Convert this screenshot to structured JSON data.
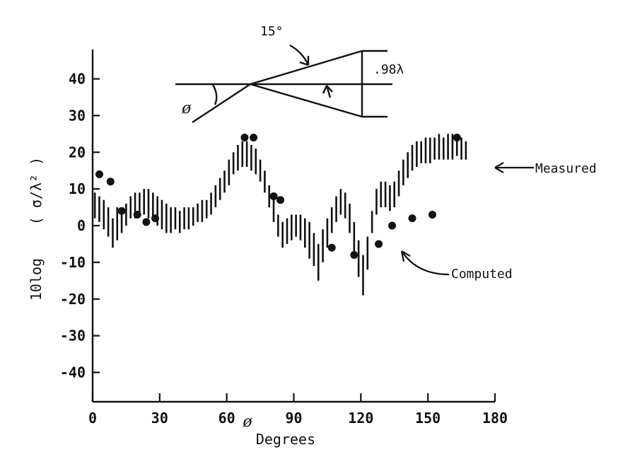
{
  "chart_data": {
    "type": "scatter",
    "x_ticks": [
      "0",
      "30",
      "60",
      "90",
      "120",
      "150",
      "180"
    ],
    "x_tick_values": [
      0,
      30,
      60,
      90,
      120,
      150,
      180
    ],
    "y_ticks": [
      "40",
      "30",
      "20",
      "10",
      "0",
      "-10",
      "-20",
      "-30",
      "-40"
    ],
    "y_tick_values": [
      40,
      30,
      20,
      10,
      0,
      -10,
      -20,
      -30,
      -40
    ],
    "xlim": [
      0,
      180
    ],
    "ylim": [
      -48,
      48
    ],
    "xlabel_symbol": "ø",
    "xlabel": "Degrees",
    "ylabel_prefix": "10log",
    "ylabel_ratio": "( σ/λ² )",
    "measured_label": "Measured",
    "computed_label": "Computed",
    "inset": {
      "angle_label": "15°",
      "length_label": ".98λ",
      "phi_label": "ø"
    },
    "measured": [
      {
        "x": 1,
        "lo": 2,
        "hi": 9
      },
      {
        "x": 3,
        "lo": 1,
        "hi": 8
      },
      {
        "x": 5,
        "lo": -1,
        "hi": 7
      },
      {
        "x": 7,
        "lo": -3,
        "hi": 5
      },
      {
        "x": 9,
        "lo": -6,
        "hi": 2
      },
      {
        "x": 11,
        "lo": -4,
        "hi": 5
      },
      {
        "x": 13,
        "lo": -2,
        "hi": 5
      },
      {
        "x": 15,
        "lo": 0,
        "hi": 6
      },
      {
        "x": 17,
        "lo": 2,
        "hi": 8
      },
      {
        "x": 19,
        "lo": 2,
        "hi": 9
      },
      {
        "x": 21,
        "lo": 3,
        "hi": 9
      },
      {
        "x": 23,
        "lo": 3,
        "hi": 10
      },
      {
        "x": 25,
        "lo": 2,
        "hi": 10
      },
      {
        "x": 27,
        "lo": 2,
        "hi": 9
      },
      {
        "x": 29,
        "lo": 0,
        "hi": 8
      },
      {
        "x": 31,
        "lo": -1,
        "hi": 7
      },
      {
        "x": 33,
        "lo": -2,
        "hi": 6
      },
      {
        "x": 35,
        "lo": -2,
        "hi": 5
      },
      {
        "x": 37,
        "lo": -1,
        "hi": 5
      },
      {
        "x": 39,
        "lo": -2,
        "hi": 4
      },
      {
        "x": 41,
        "lo": -1,
        "hi": 5
      },
      {
        "x": 43,
        "lo": -1,
        "hi": 5
      },
      {
        "x": 45,
        "lo": 0,
        "hi": 5
      },
      {
        "x": 47,
        "lo": 1,
        "hi": 6
      },
      {
        "x": 49,
        "lo": 1,
        "hi": 7
      },
      {
        "x": 51,
        "lo": 2,
        "hi": 7
      },
      {
        "x": 53,
        "lo": 3,
        "hi": 9
      },
      {
        "x": 55,
        "lo": 5,
        "hi": 11
      },
      {
        "x": 57,
        "lo": 7,
        "hi": 13
      },
      {
        "x": 59,
        "lo": 9,
        "hi": 15
      },
      {
        "x": 61,
        "lo": 11,
        "hi": 18
      },
      {
        "x": 63,
        "lo": 14,
        "hi": 20
      },
      {
        "x": 65,
        "lo": 15,
        "hi": 22
      },
      {
        "x": 67,
        "lo": 16,
        "hi": 23
      },
      {
        "x": 69,
        "lo": 16,
        "hi": 23
      },
      {
        "x": 71,
        "lo": 15,
        "hi": 22
      },
      {
        "x": 73,
        "lo": 14,
        "hi": 21
      },
      {
        "x": 75,
        "lo": 12,
        "hi": 18
      },
      {
        "x": 77,
        "lo": 9,
        "hi": 15
      },
      {
        "x": 79,
        "lo": 5,
        "hi": 11
      },
      {
        "x": 81,
        "lo": 1,
        "hi": 7
      },
      {
        "x": 83,
        "lo": -3,
        "hi": 3
      },
      {
        "x": 85,
        "lo": -6,
        "hi": 1
      },
      {
        "x": 87,
        "lo": -5,
        "hi": 2
      },
      {
        "x": 89,
        "lo": -4,
        "hi": 3
      },
      {
        "x": 91,
        "lo": -3,
        "hi": 3
      },
      {
        "x": 93,
        "lo": -4,
        "hi": 3
      },
      {
        "x": 95,
        "lo": -6,
        "hi": 2
      },
      {
        "x": 97,
        "lo": -9,
        "hi": 1
      },
      {
        "x": 99,
        "lo": -11,
        "hi": -2
      },
      {
        "x": 101,
        "lo": -15,
        "hi": -5
      },
      {
        "x": 103,
        "lo": -10,
        "hi": -1
      },
      {
        "x": 105,
        "lo": -6,
        "hi": 2
      },
      {
        "x": 107,
        "lo": -2,
        "hi": 5
      },
      {
        "x": 109,
        "lo": 1,
        "hi": 8
      },
      {
        "x": 111,
        "lo": 3,
        "hi": 10
      },
      {
        "x": 113,
        "lo": 2,
        "hi": 9
      },
      {
        "x": 115,
        "lo": -2,
        "hi": 6
      },
      {
        "x": 117,
        "lo": -8,
        "hi": 1
      },
      {
        "x": 119,
        "lo": -14,
        "hi": -4
      },
      {
        "x": 121,
        "lo": -19,
        "hi": -8
      },
      {
        "x": 123,
        "lo": -12,
        "hi": -3
      },
      {
        "x": 125,
        "lo": -2,
        "hi": 4
      },
      {
        "x": 127,
        "lo": 3,
        "hi": 10
      },
      {
        "x": 129,
        "lo": 5,
        "hi": 12
      },
      {
        "x": 131,
        "lo": 5,
        "hi": 12
      },
      {
        "x": 133,
        "lo": 4,
        "hi": 11
      },
      {
        "x": 135,
        "lo": 5,
        "hi": 12
      },
      {
        "x": 137,
        "lo": 8,
        "hi": 15
      },
      {
        "x": 139,
        "lo": 11,
        "hi": 18
      },
      {
        "x": 141,
        "lo": 13,
        "hi": 20
      },
      {
        "x": 143,
        "lo": 15,
        "hi": 22
      },
      {
        "x": 145,
        "lo": 16,
        "hi": 23
      },
      {
        "x": 147,
        "lo": 17,
        "hi": 23
      },
      {
        "x": 149,
        "lo": 17,
        "hi": 24
      },
      {
        "x": 151,
        "lo": 17,
        "hi": 24
      },
      {
        "x": 153,
        "lo": 18,
        "hi": 24
      },
      {
        "x": 155,
        "lo": 18,
        "hi": 25
      },
      {
        "x": 157,
        "lo": 18,
        "hi": 24
      },
      {
        "x": 159,
        "lo": 18,
        "hi": 25
      },
      {
        "x": 161,
        "lo": 18,
        "hi": 25
      },
      {
        "x": 163,
        "lo": 19,
        "hi": 25
      },
      {
        "x": 165,
        "lo": 18,
        "hi": 24
      },
      {
        "x": 167,
        "lo": 18,
        "hi": 23
      }
    ],
    "computed": [
      {
        "x": 3,
        "y": 14
      },
      {
        "x": 8,
        "y": 12
      },
      {
        "x": 13,
        "y": 4
      },
      {
        "x": 20,
        "y": 3
      },
      {
        "x": 24,
        "y": 1
      },
      {
        "x": 28,
        "y": 2
      },
      {
        "x": 68,
        "y": 24
      },
      {
        "x": 72,
        "y": 24
      },
      {
        "x": 81,
        "y": 8
      },
      {
        "x": 84,
        "y": 7
      },
      {
        "x": 107,
        "y": -6
      },
      {
        "x": 117,
        "y": -8
      },
      {
        "x": 128,
        "y": -5
      },
      {
        "x": 134,
        "y": 0
      },
      {
        "x": 143,
        "y": 2
      },
      {
        "x": 152,
        "y": 3
      },
      {
        "x": 163,
        "y": 24
      }
    ]
  }
}
